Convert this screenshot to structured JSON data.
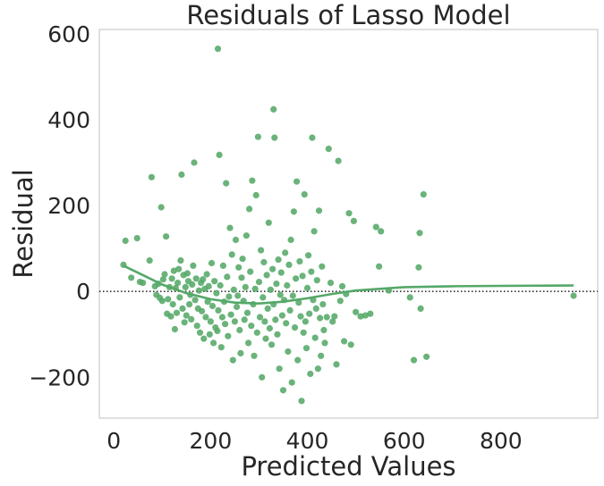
{
  "chart_data": {
    "type": "scatter",
    "title": "Residuals of Lasso Model",
    "xlabel": "Predicted Values",
    "ylabel": "Residual",
    "xlim": [
      -30,
      1000
    ],
    "ylim": [
      -295,
      610
    ],
    "xticks": [
      0,
      200,
      400,
      600,
      800
    ],
    "yticks": [
      -200,
      0,
      200,
      400,
      600
    ],
    "xtick_labels": [
      "0",
      "200",
      "400",
      "600",
      "800"
    ],
    "ytick_labels": [
      "−200",
      "0",
      "200",
      "400",
      "600"
    ],
    "grid": false,
    "point_color": "#55a868",
    "reference_line": {
      "y": 0,
      "style": "dotted",
      "color": "#333333"
    },
    "points": [
      [
        20,
        62
      ],
      [
        24,
        118
      ],
      [
        36,
        32
      ],
      [
        48,
        124
      ],
      [
        54,
        22
      ],
      [
        60,
        20
      ],
      [
        74,
        72
      ],
      [
        78,
        266
      ],
      [
        85,
        12
      ],
      [
        88,
        -8
      ],
      [
        92,
        18
      ],
      [
        95,
        -15
      ],
      [
        98,
        196
      ],
      [
        100,
        -22
      ],
      [
        102,
        28
      ],
      [
        105,
        40
      ],
      [
        108,
        128
      ],
      [
        110,
        -52
      ],
      [
        112,
        -18
      ],
      [
        115,
        10
      ],
      [
        118,
        -58
      ],
      [
        120,
        30
      ],
      [
        122,
        -30
      ],
      [
        124,
        48
      ],
      [
        126,
        -88
      ],
      [
        128,
        8
      ],
      [
        130,
        -50
      ],
      [
        132,
        20
      ],
      [
        134,
        52
      ],
      [
        136,
        -14
      ],
      [
        138,
        72
      ],
      [
        140,
        272
      ],
      [
        142,
        -40
      ],
      [
        144,
        38
      ],
      [
        146,
        -72
      ],
      [
        148,
        10
      ],
      [
        150,
        -56
      ],
      [
        152,
        42
      ],
      [
        154,
        24
      ],
      [
        156,
        -30
      ],
      [
        158,
        -8
      ],
      [
        160,
        -65
      ],
      [
        162,
        16
      ],
      [
        164,
        60
      ],
      [
        166,
        300
      ],
      [
        168,
        -20
      ],
      [
        170,
        30
      ],
      [
        172,
        -80
      ],
      [
        174,
        -40
      ],
      [
        176,
        2
      ],
      [
        178,
        -96
      ],
      [
        180,
        20
      ],
      [
        182,
        -46
      ],
      [
        184,
        28
      ],
      [
        186,
        -110
      ],
      [
        188,
        6
      ],
      [
        190,
        -60
      ],
      [
        192,
        40
      ],
      [
        194,
        -24
      ],
      [
        196,
        12
      ],
      [
        198,
        -100
      ],
      [
        200,
        -70
      ],
      [
        202,
        66
      ],
      [
        204,
        -34
      ],
      [
        206,
        -120
      ],
      [
        208,
        24
      ],
      [
        210,
        -84
      ],
      [
        212,
        -4
      ],
      [
        214,
        -92
      ],
      [
        216,
        -44
      ],
      [
        218,
        318
      ],
      [
        220,
        14
      ],
      [
        222,
        -130
      ],
      [
        224,
        -60
      ],
      [
        226,
        60
      ],
      [
        228,
        -24
      ],
      [
        230,
        -76
      ],
      [
        232,
        252
      ],
      [
        234,
        34
      ],
      [
        236,
        -104
      ],
      [
        238,
        -12
      ],
      [
        240,
        148
      ],
      [
        242,
        -54
      ],
      [
        244,
        86
      ],
      [
        246,
        -160
      ],
      [
        248,
        4
      ],
      [
        250,
        -70
      ],
      [
        252,
        120
      ],
      [
        254,
        -36
      ],
      [
        256,
        -10
      ],
      [
        258,
        56
      ],
      [
        260,
        -90
      ],
      [
        262,
        -144
      ],
      [
        264,
        32
      ],
      [
        266,
        76
      ],
      [
        268,
        -22
      ],
      [
        270,
        -66
      ],
      [
        272,
        10
      ],
      [
        274,
        130
      ],
      [
        276,
        -50
      ],
      [
        278,
        -120
      ],
      [
        280,
        192
      ],
      [
        282,
        46
      ],
      [
        284,
        -80
      ],
      [
        286,
        258
      ],
      [
        288,
        -30
      ],
      [
        290,
        -150
      ],
      [
        292,
        6
      ],
      [
        294,
        224
      ],
      [
        296,
        -96
      ],
      [
        298,
        360
      ],
      [
        300,
        22
      ],
      [
        302,
        -60
      ],
      [
        304,
        96
      ],
      [
        306,
        -200
      ],
      [
        308,
        -14
      ],
      [
        310,
        68
      ],
      [
        312,
        -70
      ],
      [
        314,
        -110
      ],
      [
        316,
        38
      ],
      [
        318,
        -40
      ],
      [
        320,
        160
      ],
      [
        322,
        -86
      ],
      [
        324,
        4
      ],
      [
        326,
        -124
      ],
      [
        328,
        52
      ],
      [
        330,
        -30
      ],
      [
        332,
        358
      ],
      [
        334,
        -66
      ],
      [
        336,
        18
      ],
      [
        338,
        -100
      ],
      [
        340,
        74
      ],
      [
        342,
        -180
      ],
      [
        344,
        -8
      ],
      [
        346,
        44
      ],
      [
        348,
        -56
      ],
      [
        350,
        -230
      ],
      [
        352,
        -20
      ],
      [
        354,
        90
      ],
      [
        356,
        -74
      ],
      [
        358,
        14
      ],
      [
        360,
        -140
      ],
      [
        362,
        62
      ],
      [
        364,
        -44
      ],
      [
        366,
        120
      ],
      [
        368,
        -212
      ],
      [
        370,
        -10
      ],
      [
        372,
        186
      ],
      [
        374,
        -84
      ],
      [
        376,
        30
      ],
      [
        378,
        256
      ],
      [
        380,
        -160
      ],
      [
        382,
        -26
      ],
      [
        384,
        70
      ],
      [
        386,
        -58
      ],
      [
        388,
        -255
      ],
      [
        390,
        36
      ],
      [
        392,
        -96
      ],
      [
        394,
        226
      ],
      [
        396,
        -70
      ],
      [
        398,
        -132
      ],
      [
        400,
        8
      ],
      [
        402,
        84
      ],
      [
        404,
        -52
      ],
      [
        406,
        -192
      ],
      [
        408,
        46
      ],
      [
        410,
        358
      ],
      [
        412,
        -20
      ],
      [
        414,
        140
      ],
      [
        416,
        -108
      ],
      [
        418,
        -40
      ],
      [
        420,
        26
      ],
      [
        422,
        -180
      ],
      [
        424,
        188
      ],
      [
        426,
        -62
      ],
      [
        428,
        -150
      ],
      [
        430,
        58
      ],
      [
        432,
        -30
      ],
      [
        434,
        -90
      ],
      [
        436,
        -120
      ],
      [
        440,
        -60
      ],
      [
        444,
        332
      ],
      [
        448,
        20
      ],
      [
        452,
        -70
      ],
      [
        456,
        -58
      ],
      [
        460,
        -170
      ],
      [
        464,
        304
      ],
      [
        468,
        -22
      ],
      [
        472,
        12
      ],
      [
        476,
        -116
      ],
      [
        480,
        -6
      ],
      [
        486,
        182
      ],
      [
        490,
        -124
      ],
      [
        496,
        164
      ],
      [
        500,
        -48
      ],
      [
        510,
        -58
      ],
      [
        520,
        -56
      ],
      [
        530,
        -52
      ],
      [
        542,
        150
      ],
      [
        548,
        58
      ],
      [
        552,
        140
      ],
      [
        568,
        2
      ],
      [
        612,
        -14
      ],
      [
        620,
        -160
      ],
      [
        630,
        56
      ],
      [
        632,
        136
      ],
      [
        634,
        -40
      ],
      [
        640,
        226
      ],
      [
        646,
        -152
      ],
      [
        950,
        -10
      ],
      [
        330,
        424
      ],
      [
        215,
        565
      ]
    ],
    "smooth_line": [
      [
        20,
        60
      ],
      [
        60,
        38
      ],
      [
        100,
        16
      ],
      [
        150,
        -4
      ],
      [
        200,
        -18
      ],
      [
        250,
        -26
      ],
      [
        300,
        -28
      ],
      [
        350,
        -24
      ],
      [
        400,
        -16
      ],
      [
        450,
        -6
      ],
      [
        500,
        2
      ],
      [
        550,
        6
      ],
      [
        600,
        10
      ],
      [
        700,
        12
      ],
      [
        800,
        13
      ],
      [
        950,
        14
      ]
    ]
  }
}
